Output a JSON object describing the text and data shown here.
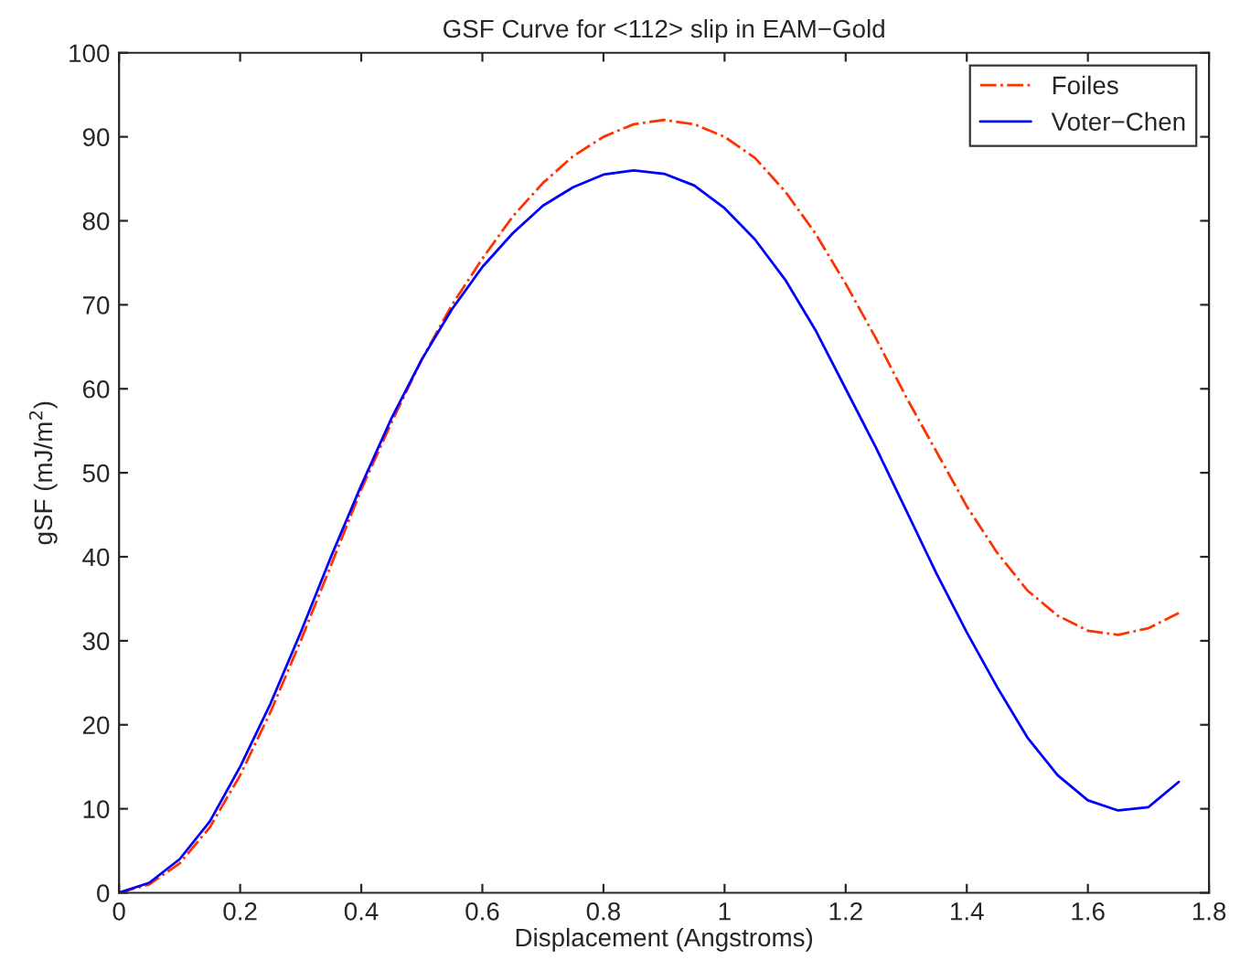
{
  "chart_data": {
    "type": "line",
    "title": "GSF Curve for <112> slip in EAM−Gold",
    "xlabel": "Displacement (Angstroms)",
    "ylabel": "gSF (mJ/m$^{2}$)",
    "x": [
      0,
      0.05,
      0.1,
      0.15,
      0.2,
      0.25,
      0.3,
      0.35,
      0.4,
      0.45,
      0.5,
      0.55,
      0.6,
      0.65,
      0.7,
      0.75,
      0.8,
      0.85,
      0.9,
      0.95,
      1.0,
      1.05,
      1.1,
      1.15,
      1.2,
      1.25,
      1.3,
      1.35,
      1.4,
      1.45,
      1.5,
      1.55,
      1.6,
      1.65,
      1.7,
      1.75
    ],
    "series": [
      {
        "name": "Foiles",
        "color": "#ff3300",
        "line_style": "dashdot",
        "values": [
          0,
          1,
          3.5,
          7.8,
          14,
          21.5,
          30,
          39,
          48,
          56,
          63.5,
          70,
          75.5,
          80.5,
          84.5,
          87.7,
          90,
          91.5,
          92,
          91.5,
          90,
          87.5,
          83.5,
          78.5,
          72.5,
          66,
          59,
          52.5,
          46,
          40.5,
          36,
          33,
          31.2,
          30.7,
          31.5,
          33.3
        ]
      },
      {
        "name": "Voter−Chen",
        "color": "#0000ff",
        "line_style": "solid",
        "values": [
          0,
          1.2,
          4,
          8.5,
          15,
          22.5,
          31,
          40,
          48.5,
          56.5,
          63.5,
          69.5,
          74.5,
          78.5,
          81.8,
          84,
          85.5,
          86,
          85.6,
          84.2,
          81.5,
          77.8,
          73,
          67,
          60,
          53,
          45.5,
          38,
          31,
          24.5,
          18.5,
          14,
          11,
          9.8,
          10.2,
          13.2
        ]
      }
    ],
    "xlim": [
      0,
      1.8
    ],
    "xticks": [
      0,
      0.2,
      0.4,
      0.6,
      0.8,
      1,
      1.2,
      1.4,
      1.6,
      1.8
    ],
    "ylim": [
      0,
      100
    ],
    "yticks": [
      0,
      10,
      20,
      30,
      40,
      50,
      60,
      70,
      80,
      90,
      100
    ],
    "grid": false,
    "legend": "top right"
  }
}
